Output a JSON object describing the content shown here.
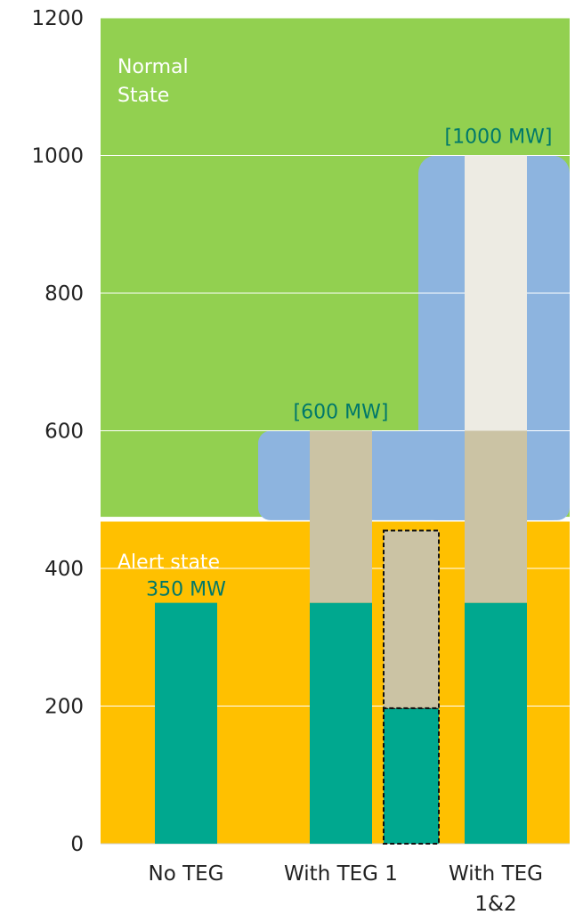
{
  "chart_data": {
    "type": "bar",
    "title": "",
    "xlabel": "",
    "ylabel": "",
    "ylim": [
      0,
      1200
    ],
    "yticks": [
      "0",
      "200",
      "400",
      "600",
      "800",
      "1000",
      "1200"
    ],
    "categories": [
      {
        "line1": "No TEG",
        "line2": ""
      },
      {
        "line1": "With TEG 1",
        "line2": ""
      },
      {
        "line1": "With TEG",
        "line2": "1&2"
      }
    ],
    "background_zones": [
      {
        "label_line1": "Normal",
        "label_line2": "State",
        "from": 475,
        "to": 1200,
        "color": "#92d050"
      },
      {
        "label_line1": "Alert state",
        "label_line2": "",
        "from": 0,
        "to": 468,
        "color": "#ffc000"
      }
    ],
    "envelope_color": "#8db4df",
    "envelope_top": [
      600,
      1000
    ],
    "envelope_bottom": 470,
    "stacks": [
      {
        "category_index": 0,
        "segments": [
          {
            "from": 0,
            "to": 350,
            "color": "#00a88f"
          }
        ]
      },
      {
        "category_index": 1,
        "segments": [
          {
            "from": 0,
            "to": 350,
            "color": "#00a88f"
          },
          {
            "from": 350,
            "to": 600,
            "color": "#cbc3a4"
          }
        ]
      },
      {
        "category_index": 2,
        "segments": [
          {
            "from": 0,
            "to": 350,
            "color": "#00a88f"
          },
          {
            "from": 350,
            "to": 600,
            "color": "#cbc3a4"
          },
          {
            "from": 600,
            "to": 1000,
            "color": "#edebe3"
          }
        ]
      }
    ],
    "dashed_stack": {
      "between_categories": [
        1,
        2
      ],
      "segments": [
        {
          "from": 0,
          "to": 197,
          "color": "#00a88f"
        },
        {
          "from": 197,
          "to": 455,
          "color": "#cbc3a4"
        }
      ]
    },
    "annotations": [
      {
        "text": "350 MW",
        "value": 350
      },
      {
        "text": "[600 MW]",
        "value": 600
      },
      {
        "text": "[1000 MW]",
        "value": 1000
      }
    ],
    "grid": true,
    "gridline_color": "#ffffff"
  }
}
